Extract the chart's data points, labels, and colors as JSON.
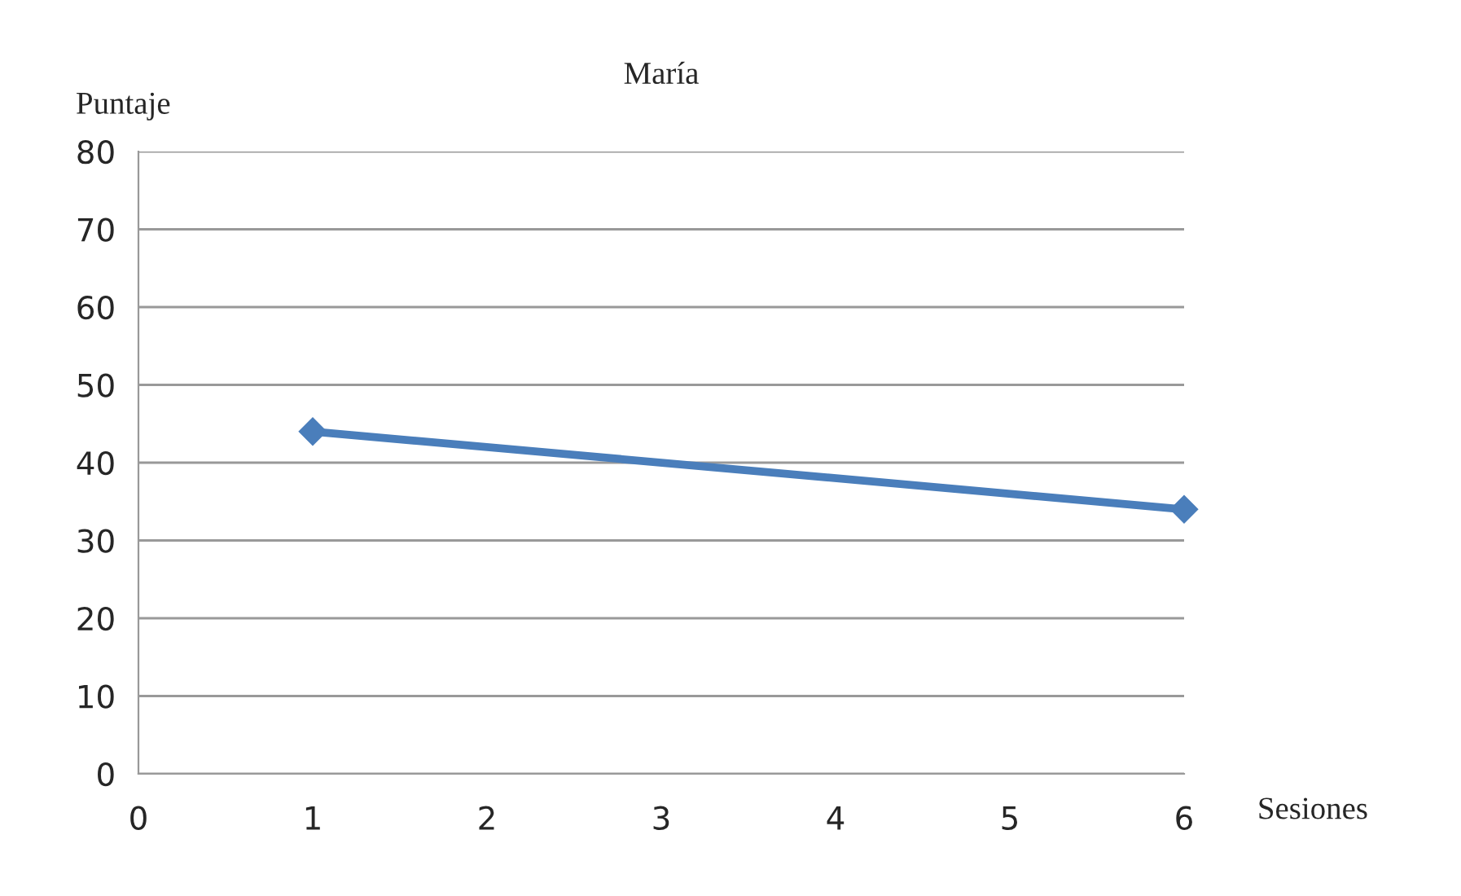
{
  "chart_data": {
    "type": "line",
    "title": "María",
    "xlabel": "Sesiones",
    "ylabel": "Puntaje",
    "x": [
      1,
      6
    ],
    "series": [
      {
        "color": "#4a7ebb",
        "values": [
          44,
          34
        ]
      }
    ],
    "xlim": [
      0,
      6
    ],
    "xticks": [
      0,
      1,
      2,
      3,
      4,
      5,
      6
    ],
    "ylim": [
      0,
      80
    ],
    "yticks": [
      0,
      10,
      20,
      30,
      40,
      50,
      60,
      70,
      80
    ],
    "grid": "y",
    "marker": "diamond",
    "line_style": "solid"
  }
}
